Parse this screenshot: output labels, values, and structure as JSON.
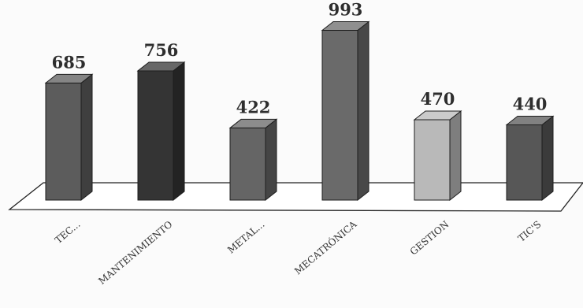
{
  "chart_data": {
    "type": "bar",
    "categories": [
      "TEC...",
      "MANTENIMIENTO",
      "METAL...",
      "MECATRÓNICA",
      "GESTION",
      "TIC'S"
    ],
    "values": [
      685,
      756,
      422,
      993,
      470,
      440
    ],
    "colors": [
      "#5c5c5c",
      "#343434",
      "#656565",
      "#6a6a6a",
      "#b9b9b9",
      "#575757"
    ],
    "title": "",
    "xlabel": "",
    "ylabel": "",
    "ylim": [
      0,
      1000
    ],
    "grid": false,
    "legend": "none",
    "style": "3d-column"
  }
}
